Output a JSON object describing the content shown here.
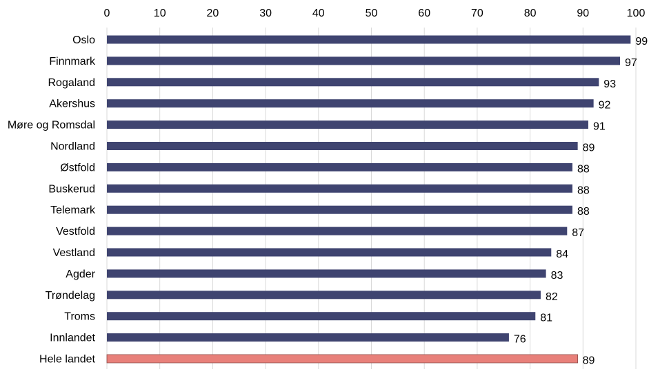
{
  "chart_data": {
    "type": "bar",
    "orientation": "horizontal",
    "categories": [
      "Oslo",
      "Finnmark",
      "Rogaland",
      "Akershus",
      "Møre og Romsdal",
      "Nordland",
      "Østfold",
      "Buskerud",
      "Telemark",
      "Vestfold",
      "Vestland",
      "Agder",
      "Trøndelag",
      "Troms",
      "Innlandet",
      "Hele landet"
    ],
    "values": [
      99,
      97,
      93,
      92,
      91,
      89,
      88,
      88,
      88,
      87,
      84,
      83,
      82,
      81,
      76,
      89
    ],
    "value_labels": [
      "99",
      "97",
      "93",
      "92",
      "91",
      "89",
      "88",
      "88",
      "88",
      "87",
      "84",
      "83",
      "82",
      "81",
      "76",
      "89"
    ],
    "bar_colors": [
      "#3f4470",
      "#3f4470",
      "#3f4470",
      "#3f4470",
      "#3f4470",
      "#3f4470",
      "#3f4470",
      "#3f4470",
      "#3f4470",
      "#3f4470",
      "#3f4470",
      "#3f4470",
      "#3f4470",
      "#3f4470",
      "#3f4470",
      "#e8807a"
    ],
    "xlim": [
      0,
      100
    ],
    "xticks": [
      "0",
      "10",
      "20",
      "30",
      "40",
      "50",
      "60",
      "70",
      "80",
      "90",
      "100"
    ],
    "x_axis_position": "top",
    "grid": "vertical",
    "legend": "none"
  }
}
